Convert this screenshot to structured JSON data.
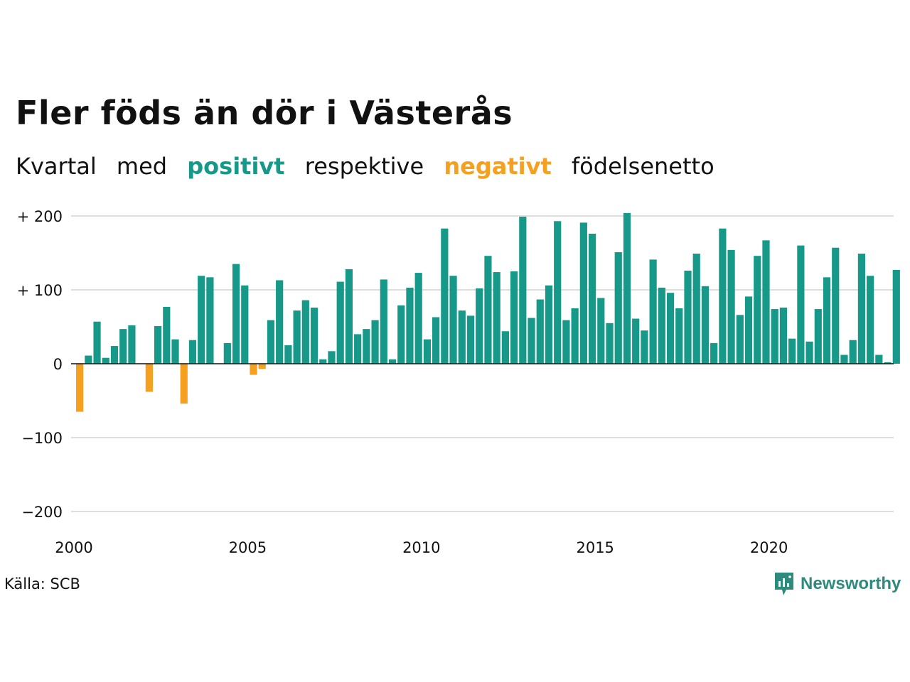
{
  "title": "Fler föds än dör i Västerås",
  "subtitle": {
    "w1": "Kvartal",
    "w2": "med",
    "positive": "positivt",
    "w3": "respektive",
    "negative": "negativt",
    "w4": "födelsenetto"
  },
  "source": "Källa: SCB",
  "logo_text": "Newsworthy",
  "colors": {
    "positive": "#17998a",
    "negative": "#f5a01e",
    "grid": "#dddddd",
    "logo": "#2d8a7c"
  },
  "chart_data": {
    "type": "bar",
    "title": "Fler föds än dör i Västerås",
    "x_start_year": 2000,
    "x_step": "quarter",
    "x_ticks": [
      "2000",
      "2005",
      "2010",
      "2015",
      "2020"
    ],
    "y_ticks": [
      {
        "value": 200,
        "label": "+ 200"
      },
      {
        "value": 100,
        "label": "+ 100"
      },
      {
        "value": 0,
        "label": "0"
      },
      {
        "value": -100,
        "label": "−100"
      },
      {
        "value": -200,
        "label": "−200"
      }
    ],
    "ylim": [
      -200,
      200
    ],
    "grid": true,
    "values": [
      -65,
      11,
      57,
      8,
      24,
      47,
      52,
      0,
      -38,
      51,
      77,
      33,
      -54,
      32,
      119,
      117,
      0,
      28,
      135,
      106,
      -15,
      -7,
      59,
      113,
      25,
      72,
      86,
      76,
      6,
      17,
      111,
      128,
      40,
      47,
      59,
      114,
      6,
      79,
      103,
      123,
      33,
      63,
      183,
      119,
      72,
      65,
      102,
      146,
      124,
      44,
      125,
      199,
      62,
      87,
      106,
      193,
      59,
      75,
      191,
      176,
      89,
      55,
      151,
      204,
      61,
      45,
      141,
      103,
      96,
      75,
      126,
      149,
      105,
      28,
      183,
      154,
      66,
      91,
      146,
      167,
      74,
      76,
      34,
      160,
      30,
      74,
      117,
      157,
      12,
      32,
      149,
      119,
      12,
      2,
      127
    ]
  }
}
